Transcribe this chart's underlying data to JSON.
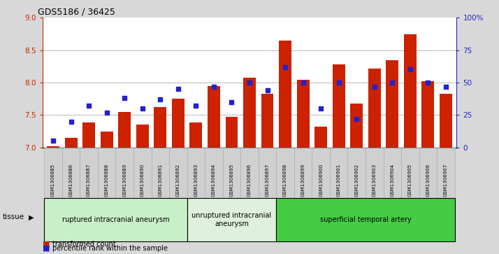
{
  "title": "GDS5186 / 36425",
  "samples": [
    "GSM1306885",
    "GSM1306886",
    "GSM1306887",
    "GSM1306888",
    "GSM1306889",
    "GSM1306890",
    "GSM1306891",
    "GSM1306892",
    "GSM1306893",
    "GSM1306894",
    "GSM1306895",
    "GSM1306896",
    "GSM1306897",
    "GSM1306898",
    "GSM1306899",
    "GSM1306900",
    "GSM1306901",
    "GSM1306902",
    "GSM1306903",
    "GSM1306904",
    "GSM1306905",
    "GSM1306906",
    "GSM1306907"
  ],
  "bar_values": [
    7.02,
    7.15,
    7.38,
    7.24,
    7.55,
    7.35,
    7.62,
    7.75,
    7.38,
    7.95,
    7.47,
    8.08,
    7.83,
    8.65,
    8.04,
    7.32,
    8.28,
    7.68,
    8.22,
    8.35,
    8.75,
    8.02,
    7.83
  ],
  "dot_percentile": [
    5,
    20,
    32,
    27,
    38,
    30,
    37,
    45,
    32,
    47,
    35,
    50,
    44,
    62,
    50,
    30,
    50,
    22,
    47,
    50,
    60,
    50,
    47
  ],
  "ylim_left": [
    7.0,
    9.0
  ],
  "ylim_right": [
    0,
    100
  ],
  "yticks_left": [
    7.0,
    7.5,
    8.0,
    8.5,
    9.0
  ],
  "yticks_right": [
    0,
    25,
    50,
    75,
    100
  ],
  "ytick_labels_right": [
    "0",
    "25",
    "50",
    "75",
    "100%"
  ],
  "group_info": [
    {
      "start": 0,
      "end": 8,
      "color": "#c8f0c8",
      "label": "ruptured intracranial aneurysm"
    },
    {
      "start": 8,
      "end": 13,
      "color": "#dff0df",
      "label": "unruptured intracranial\naneurysm"
    },
    {
      "start": 13,
      "end": 23,
      "color": "#44cc44",
      "label": "superficial temporal artery"
    }
  ],
  "bar_color": "#cc2200",
  "dot_color": "#2222cc",
  "background_color": "#d8d8d8",
  "plot_bg_color": "#ffffff",
  "xtick_bg_color": "#d0d0d0",
  "tissue_label": "tissue",
  "legend_bar_label": "transformed count",
  "legend_dot_label": "percentile rank within the sample"
}
